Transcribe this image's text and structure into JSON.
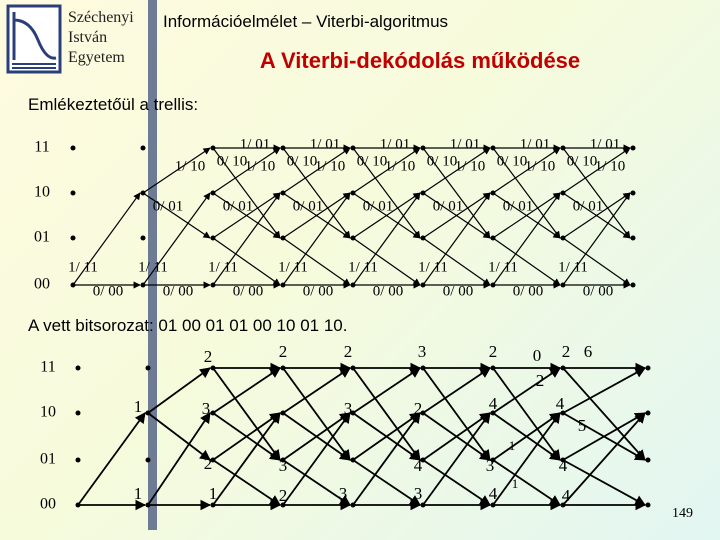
{
  "header": {
    "logo_lines": [
      "Széchenyi",
      "István",
      "Egyetem"
    ],
    "course_title": "Információelmélet – Viterbi-algoritmus",
    "slide_title": "A Viterbi-dekódolás működése"
  },
  "section1": {
    "caption": "Emlékeztetőül a trellis:",
    "states": [
      "11",
      "10",
      "01",
      "00"
    ],
    "labels": {
      "one_01": [
        "1/ 01",
        "1/ 01",
        "1/ 01",
        "1/ 01",
        "1/ 01",
        "1/ 01"
      ],
      "one_10": [
        "1/ 10",
        "1/ 10",
        "1/ 10",
        "1/ 10",
        "1/ 10",
        "1/ 10",
        "1/ 10"
      ],
      "zero_10": [
        "0/ 10",
        "0/ 10",
        "0/ 10",
        "0/ 10",
        "0/ 10",
        "0/ 10"
      ],
      "zero_01": [
        "0/ 01",
        "0/ 01",
        "0/ 01",
        "0/ 01",
        "0/ 01",
        "0/ 01",
        "0/ 01"
      ],
      "one_11": [
        "1/ 11",
        "1/ 11",
        "1/ 11",
        "1/ 11",
        "1/ 11",
        "1/ 11",
        "1/ 11",
        "1/ 11"
      ],
      "zero_00": [
        "0/ 00",
        "0/ 00",
        "0/ 00",
        "0/ 00",
        "0/ 00",
        "0/ 00",
        "0/ 00",
        "0/ 00"
      ]
    }
  },
  "section2": {
    "caption": "A vett bitsorozat: 01 00 01 01 00 10 01 10.",
    "states": [
      "11",
      "10",
      "01",
      "00"
    ],
    "metrics": [
      1,
      1,
      2,
      3,
      2,
      1,
      2,
      3,
      2,
      2,
      3,
      3,
      3,
      2,
      4,
      3,
      2,
      4,
      3,
      4,
      1,
      0,
      2,
      2,
      4,
      5,
      1,
      4,
      4,
      6
    ]
  },
  "page_number": "149"
}
